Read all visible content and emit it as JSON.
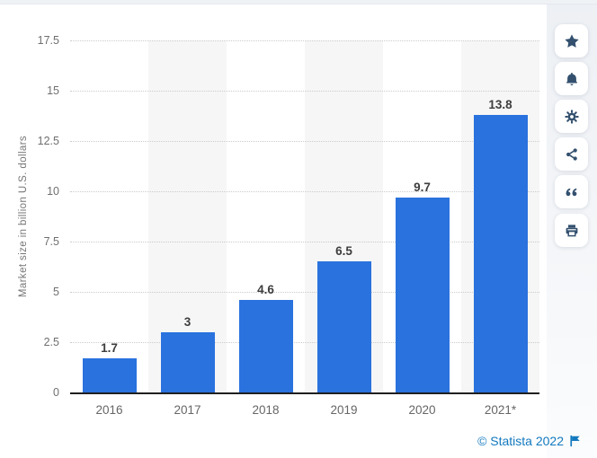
{
  "chart_data": {
    "type": "bar",
    "title": "",
    "xlabel": "",
    "ylabel": "Market size in billion U.S. dollars",
    "categories": [
      "2016",
      "2017",
      "2018",
      "2019",
      "2020",
      "2021*"
    ],
    "values": [
      1.7,
      3,
      4.6,
      6.5,
      9.7,
      13.8
    ],
    "value_labels": [
      "1.7",
      "3",
      "4.6",
      "6.5",
      "9.7",
      "13.8"
    ],
    "ylim": [
      0,
      17.5
    ],
    "yticks": [
      0,
      2.5,
      5,
      7.5,
      10,
      12.5,
      15,
      17.5
    ],
    "grid": "horizontal-dotted",
    "legend": "none",
    "striped_columns": [
      1,
      3,
      5
    ]
  },
  "toolbar": {
    "items": [
      {
        "name": "favorite",
        "icon": "star-icon"
      },
      {
        "name": "alerts",
        "icon": "bell-icon"
      },
      {
        "name": "settings",
        "icon": "gear-icon"
      },
      {
        "name": "share",
        "icon": "share-icon"
      },
      {
        "name": "cite",
        "icon": "quote-icon"
      },
      {
        "name": "print",
        "icon": "printer-icon"
      }
    ]
  },
  "footer": {
    "copyright": "© Statista 2022",
    "flag_icon": "flag-icon"
  },
  "colors": {
    "bar": "#2a72de",
    "stripe": "#f6f6f6",
    "grid": "#cbcbcb",
    "axis": "#1f1f1f",
    "tick_text": "#6f6f6f",
    "value_text": "#3d3d3d",
    "link": "#1279bf",
    "icon": "#33506e"
  }
}
